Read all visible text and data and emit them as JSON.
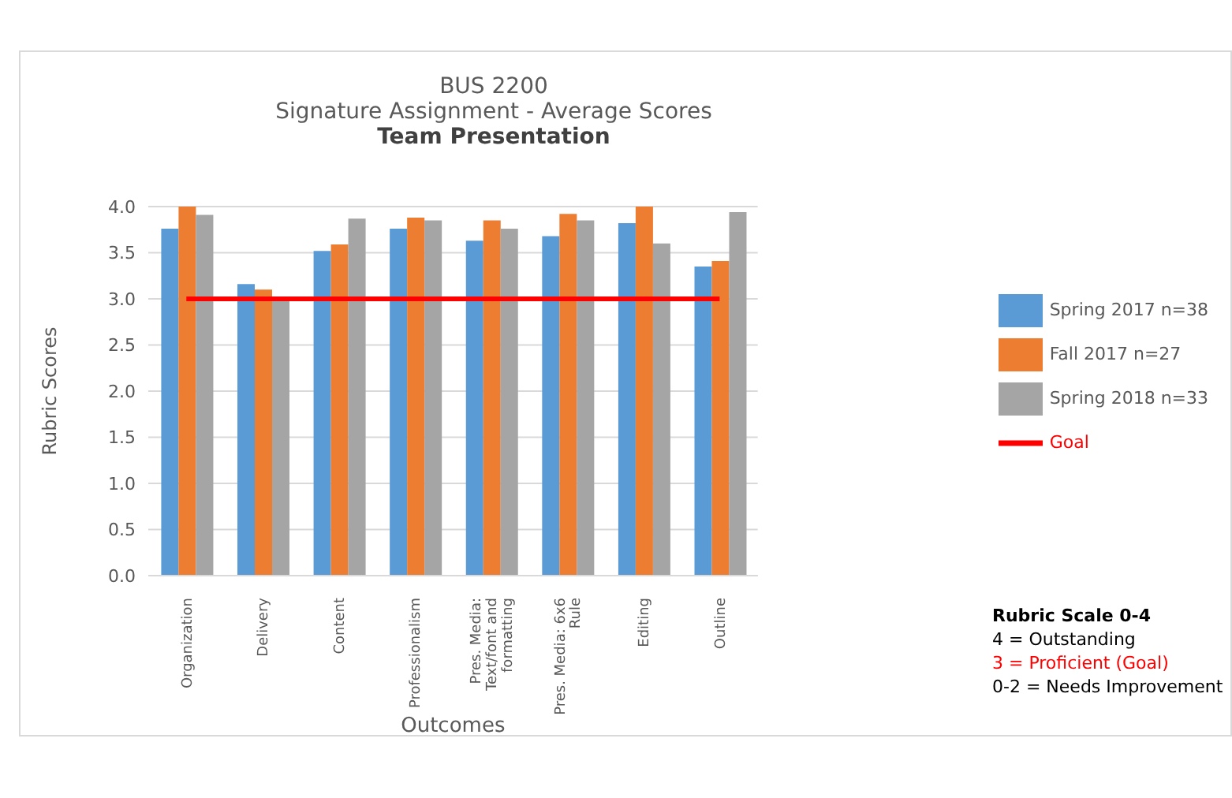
{
  "chart_data": {
    "type": "bar",
    "title": "BUS 2200",
    "subtitle": "Signature Assignment - Average Scores",
    "xlabel": "Outcomes",
    "ylabel": "Rubric Scores",
    "categories": [
      "Organization",
      "Delivery",
      "Content",
      "Professionalism",
      "Pres. Media: Text/font and formatting",
      "Pres. Media: 6x6 Rule",
      "Editing",
      "Outline"
    ],
    "series": [
      {
        "name": "Spring 2017 n=38",
        "color": "#5b9bd5",
        "values": [
          3.76,
          3.16,
          3.52,
          3.76,
          3.63,
          3.68,
          3.82,
          3.35
        ]
      },
      {
        "name": "Fall 2017 n=27",
        "color": "#ed7d31",
        "values": [
          4.0,
          3.1,
          3.59,
          3.88,
          3.85,
          3.92,
          4.0,
          3.41
        ]
      },
      {
        "name": "Spring 2018 n=33",
        "color": "#a5a5a5",
        "values": [
          3.91,
          2.98,
          3.87,
          3.85,
          3.76,
          3.85,
          3.6,
          3.94
        ]
      },
      {
        "name": "Goal",
        "type": "line",
        "color": "#ff0000",
        "values": [
          3,
          3,
          3,
          3,
          3,
          3,
          3,
          3
        ]
      }
    ],
    "ylim": [
      0,
      4
    ],
    "yticks": [
      {
        "value": 0,
        "label": "0.0"
      },
      0.5,
      {
        "value": 1,
        "label": "1.0"
      },
      1.5,
      {
        "value": 2,
        "label": "2.0"
      },
      2.5,
      {
        "value": 3,
        "label": "3.0"
      },
      3.5,
      {
        "value": 4,
        "label": "4.0"
      }
    ],
    "grid": "y",
    "legend": "right",
    "marker": "none",
    "annotations": [
      "Team Presentation",
      "Rubric Scale 0-4",
      "4 = Outstanding",
      "3 = Proficient (Goal)",
      "0-2 = Needs Improvement"
    ]
  }
}
